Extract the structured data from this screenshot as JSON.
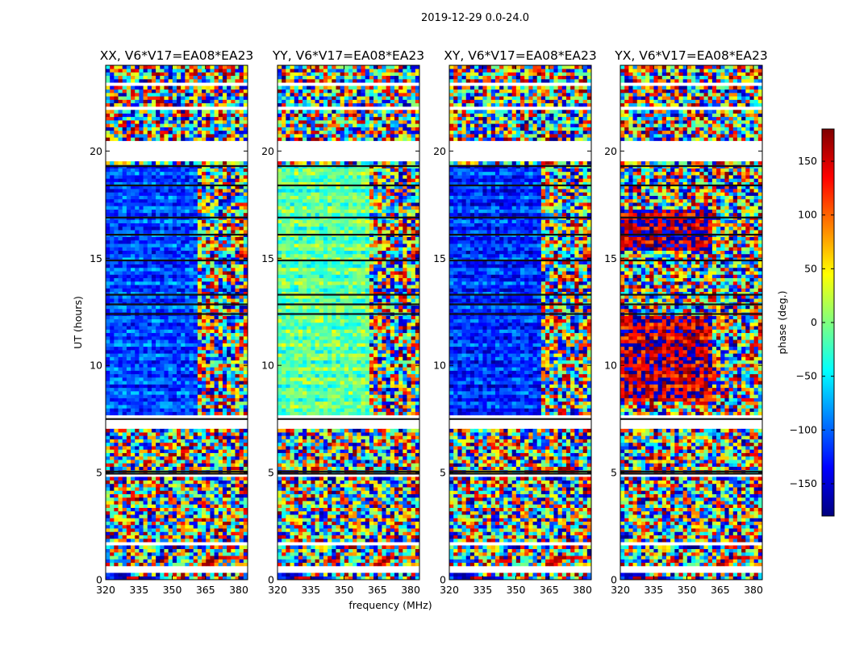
{
  "chart_data": {
    "type": "heatmap",
    "suptitle": "2019-12-29 0.0-24.0",
    "xlabel": "frequency (MHz)",
    "ylabel": "UT (hours)",
    "xlim": [
      320,
      384
    ],
    "ylim": [
      0,
      24
    ],
    "xticks": [
      320,
      335,
      350,
      365,
      380
    ],
    "yticks": [
      0,
      5,
      10,
      15,
      20
    ],
    "panels": [
      {
        "title": "XX, V6*V17=EA08*EA23",
        "pol": "XX"
      },
      {
        "title": "YY, V6*V17=EA08*EA23",
        "pol": "YY"
      },
      {
        "title": "XY, V6*V17=EA08*EA23",
        "pol": "XY"
      },
      {
        "title": "YX, V6*V17=EA08*EA23",
        "pol": "YX"
      }
    ],
    "gap_ranges_hours": [
      [
        0.4,
        0.6
      ],
      [
        1.6,
        1.75
      ],
      [
        2.05,
        2.15
      ],
      [
        4.85,
        4.95
      ],
      [
        7.1,
        7.45
      ],
      [
        7.55,
        7.75
      ],
      [
        19.45,
        20.45
      ],
      [
        21.85,
        22.0
      ],
      [
        23.05,
        23.25
      ]
    ],
    "dark_band_hours": [
      4.95,
      5.05,
      7.5,
      12.4,
      12.85,
      13.3,
      14.9,
      16.1,
      16.9,
      18.4,
      19.3
    ],
    "colorbar": {
      "label": "phase (deg.)",
      "range": [
        -180,
        180
      ],
      "ticks": [
        -150,
        -100,
        -50,
        0,
        50,
        100,
        150
      ],
      "colormap": "jet",
      "colors": [
        "#00007f",
        "#0000ff",
        "#007fff",
        "#00ffff",
        "#7fff7f",
        "#ffff00",
        "#ff7f00",
        "#ff0000",
        "#7f0000"
      ]
    }
  }
}
